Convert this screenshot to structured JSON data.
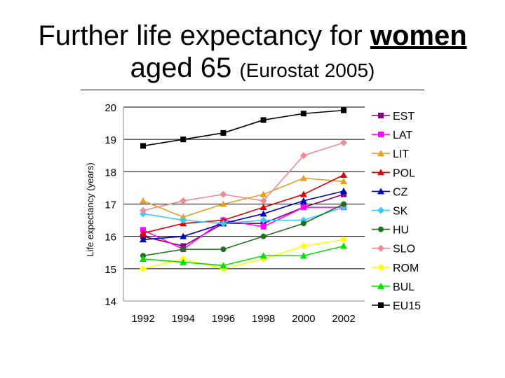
{
  "slide": {
    "title_line1_prefix": "Further life expectancy for ",
    "title_line1_emph": "women",
    "title_line2_main": "aged 65 ",
    "title_line2_small": "(Eurostat 2005)"
  },
  "chart_data": {
    "type": "line",
    "title": "",
    "xlabel": "",
    "ylabel": "Life expectancy (years)",
    "ylim": [
      14,
      20
    ],
    "yticks": [
      "20",
      "19",
      "18",
      "17",
      "16",
      "15",
      "14"
    ],
    "grid": "horizontal",
    "legend_position": "right",
    "x": [
      "1992",
      "1994",
      "1996",
      "1998",
      "2000",
      "2002"
    ],
    "series": [
      {
        "name": "EST",
        "color": "#800080",
        "marker": "square",
        "values": [
          16.0,
          15.7,
          16.4,
          16.4,
          16.9,
          17.3
        ]
      },
      {
        "name": "LAT",
        "color": "#ff00ff",
        "marker": "square",
        "values": [
          16.2,
          15.6,
          16.5,
          16.3,
          16.9,
          16.9
        ]
      },
      {
        "name": "LIT",
        "color": "#e6a020",
        "marker": "triangle",
        "values": [
          17.1,
          16.6,
          17.0,
          17.3,
          17.8,
          17.7
        ]
      },
      {
        "name": "POL",
        "color": "#e00000",
        "marker": "triangle",
        "values": [
          16.1,
          16.4,
          16.5,
          16.9,
          17.3,
          17.9
        ]
      },
      {
        "name": "CZ",
        "color": "#0000c0",
        "marker": "triangle",
        "values": [
          15.9,
          16.0,
          16.4,
          16.7,
          17.1,
          17.4
        ]
      },
      {
        "name": "SK",
        "color": "#33ccff",
        "marker": "diamond",
        "values": [
          16.7,
          16.5,
          16.4,
          16.5,
          16.5,
          16.9
        ]
      },
      {
        "name": "HU",
        "color": "#207020",
        "marker": "circle",
        "values": [
          15.4,
          15.6,
          15.6,
          16.0,
          16.4,
          17.0
        ]
      },
      {
        "name": "SLO",
        "color": "#f08a94",
        "marker": "diamond",
        "values": [
          16.8,
          17.1,
          17.3,
          17.1,
          18.5,
          18.9
        ]
      },
      {
        "name": "ROM",
        "color": "#ffff00",
        "marker": "diamond",
        "values": [
          15.0,
          15.3,
          15.0,
          15.3,
          15.7,
          15.9
        ]
      },
      {
        "name": "BUL",
        "color": "#00e000",
        "marker": "triangle",
        "values": [
          15.3,
          15.2,
          15.1,
          15.4,
          15.4,
          15.7
        ]
      },
      {
        "name": "EU15",
        "color": "#000000",
        "marker": "square",
        "values": [
          18.8,
          19.0,
          19.2,
          19.6,
          19.8,
          19.9
        ]
      }
    ]
  }
}
